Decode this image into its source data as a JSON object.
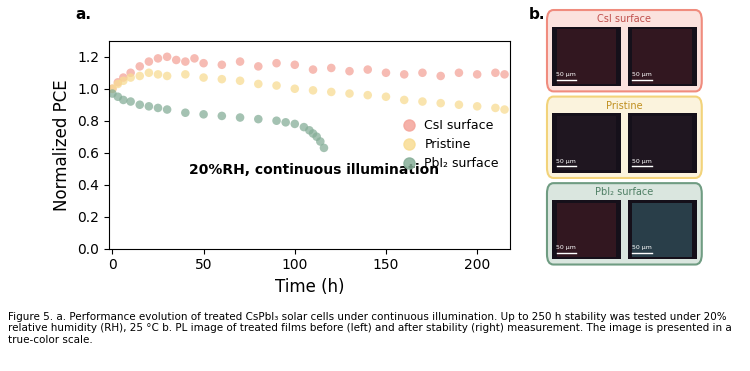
{
  "chart_data": {
    "type": "scatter",
    "x_label": "Time (h)",
    "y_label": "Normalized PCE",
    "annotation": "20%RH, continuous illumination",
    "marker": "o",
    "xlim": [
      -2,
      218
    ],
    "xticks": [
      0,
      50,
      100,
      150,
      200
    ],
    "ylim": [
      0,
      1.3
    ],
    "yticks": [
      {
        "value": 0,
        "label": "0.0"
      },
      {
        "value": 0.2,
        "label": "0.2"
      },
      {
        "value": 0.4,
        "label": "0.4"
      },
      {
        "value": 0.6,
        "label": "0.6"
      },
      {
        "value": 0.8,
        "label": "0.8"
      },
      {
        "value": 1.0,
        "label": "1.0"
      },
      {
        "value": 1.2,
        "label": "1.2"
      }
    ],
    "legend": "center right",
    "series": [
      {
        "name": "CsI surface",
        "color": "#f4a49a",
        "x": [
          0,
          3,
          6,
          10,
          15,
          20,
          25,
          30,
          35,
          40,
          45,
          50,
          60,
          70,
          80,
          90,
          100,
          110,
          120,
          130,
          140,
          150,
          160,
          170,
          180,
          190,
          200,
          210,
          215
        ],
        "values": [
          1.0,
          1.04,
          1.07,
          1.1,
          1.14,
          1.17,
          1.19,
          1.2,
          1.18,
          1.17,
          1.19,
          1.16,
          1.15,
          1.17,
          1.14,
          1.16,
          1.15,
          1.12,
          1.13,
          1.11,
          1.12,
          1.1,
          1.09,
          1.1,
          1.08,
          1.1,
          1.09,
          1.1,
          1.09
        ]
      },
      {
        "name": "Pristine",
        "color": "#f8dc93",
        "x": [
          0,
          3,
          6,
          10,
          15,
          20,
          25,
          30,
          40,
          50,
          60,
          70,
          80,
          90,
          100,
          110,
          120,
          130,
          140,
          150,
          160,
          170,
          180,
          190,
          200,
          210,
          215
        ],
        "values": [
          1.0,
          1.03,
          1.05,
          1.07,
          1.08,
          1.1,
          1.09,
          1.08,
          1.09,
          1.07,
          1.06,
          1.05,
          1.03,
          1.02,
          1.0,
          0.99,
          0.98,
          0.97,
          0.96,
          0.95,
          0.93,
          0.92,
          0.91,
          0.9,
          0.89,
          0.88,
          0.87
        ]
      },
      {
        "name": "PbI₂ surface",
        "color": "#86ae98",
        "x": [
          0,
          3,
          6,
          10,
          15,
          20,
          25,
          30,
          40,
          50,
          60,
          70,
          80,
          90,
          95,
          100,
          105,
          108,
          110,
          112,
          114,
          116
        ],
        "values": [
          0.97,
          0.95,
          0.93,
          0.92,
          0.9,
          0.89,
          0.88,
          0.87,
          0.85,
          0.84,
          0.83,
          0.82,
          0.81,
          0.8,
          0.79,
          0.78,
          0.76,
          0.74,
          0.72,
          0.7,
          0.67,
          0.63
        ]
      }
    ]
  },
  "panel_labels": [
    "a.",
    "b."
  ],
  "pl_images": [
    {
      "name": "CsI surface",
      "color": "#f08c7e",
      "scale_bars": [
        "50 μm",
        "50 μm"
      ]
    },
    {
      "name": "Pristine",
      "color": "#f2d37a",
      "scale_bars": [
        "50 μm",
        "50 μm"
      ]
    },
    {
      "name": "PbI₂ surface",
      "color": "#6f9c82",
      "scale_bars": [
        "50 μm",
        "50 μm"
      ]
    }
  ],
  "caption": "Figure 5. a. Performance evolution of treated CsPbI₃ solar cells under continuous illumination. Up to 250 h stability was tested under 20% relative humidity (RH), 25 °C b. PL image of treated films before (left) and after stability (right) measurement. The image is presented in a true-color scale."
}
